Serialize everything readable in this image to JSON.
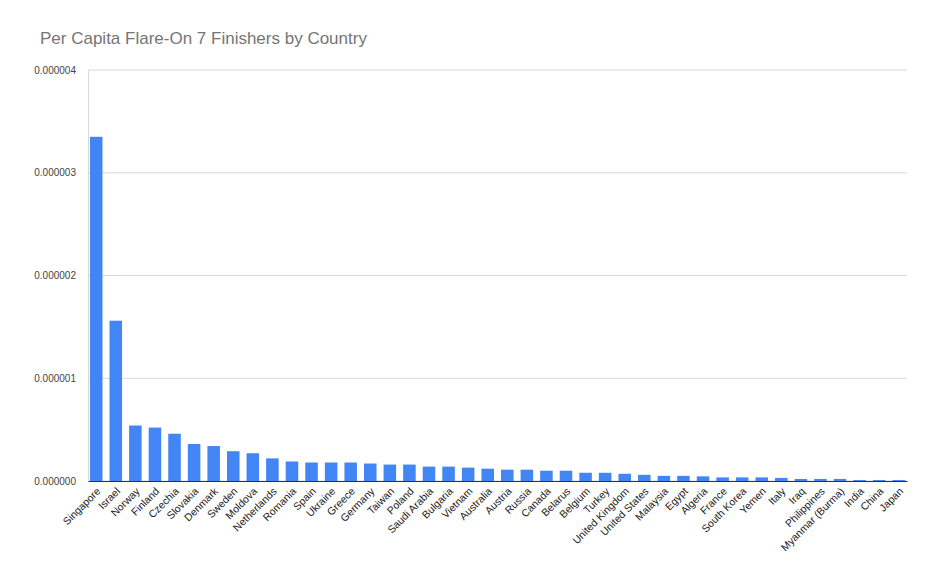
{
  "chart_data": {
    "type": "bar",
    "title": "Per Capita Flare-On 7 Finishers by Country",
    "categories": [
      "Singapore",
      "Israel",
      "Norway",
      "Finland",
      "Czechia",
      "Slovakia",
      "Denmark",
      "Sweden",
      "Moldova",
      "Netherlands",
      "Romania",
      "Spain",
      "Ukraine",
      "Greece",
      "Germany",
      "Taiwan",
      "Poland",
      "Saudi Arabia",
      "Bulgaria",
      "Vietnam",
      "Australia",
      "Austria",
      "Russia",
      "Canada",
      "Belarus",
      "Belgium",
      "Turkey",
      "United Kingdom",
      "United States",
      "Malaysia",
      "Egypt",
      "Algeria",
      "France",
      "South Korea",
      "Yemen",
      "Italy",
      "Iraq",
      "Philippines",
      "Myanmar (Burma)",
      "India",
      "China",
      "Japan"
    ],
    "values": [
      3.35e-06,
      1.56e-06,
      5.4e-07,
      5.2e-07,
      4.6e-07,
      3.6e-07,
      3.4e-07,
      2.9e-07,
      2.7e-07,
      2.2e-07,
      1.9e-07,
      1.8e-07,
      1.8e-07,
      1.8e-07,
      1.7e-07,
      1.6e-07,
      1.6e-07,
      1.4e-07,
      1.4e-07,
      1.3e-07,
      1.2e-07,
      1.1e-07,
      1.1e-07,
      1e-07,
      1e-07,
      8e-08,
      8e-08,
      7e-08,
      6e-08,
      5e-08,
      5e-08,
      4.5e-08,
      3.5e-08,
      3.5e-08,
      3.5e-08,
      3e-08,
      2e-08,
      2e-08,
      2e-08,
      1e-08,
      1e-08,
      1e-08
    ],
    "color": "#4285f4",
    "ylim": [
      0,
      4e-06
    ],
    "yticks": [
      {
        "value": 0,
        "label": "0.000000"
      },
      {
        "value": 1e-06,
        "label": "0.000001"
      },
      {
        "value": 2e-06,
        "label": "0.000002"
      },
      {
        "value": 3e-06,
        "label": "0.000003"
      },
      {
        "value": 4e-06,
        "label": "0.000004"
      }
    ],
    "grid": true
  }
}
